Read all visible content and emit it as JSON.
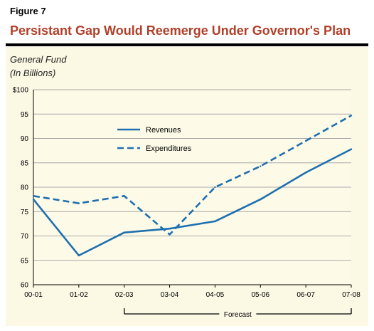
{
  "figure_label": "Figure 7",
  "title": "Persistant Gap Would Reemerge Under Governor's Plan",
  "ylabel_lines": [
    "General Fund",
    "(In Billions)"
  ],
  "colors": {
    "title": "#b0402a",
    "series": "#1f6fb0",
    "plot_bg": "#fdfbe8",
    "panel_bg": "#fbf8e4",
    "grid": "#a8a8a8"
  },
  "chart_data": {
    "type": "line",
    "x": [
      "00-01",
      "01-02",
      "02-03",
      "03-04",
      "04-05",
      "05-06",
      "06-07",
      "07-08"
    ],
    "ylim": [
      60,
      100
    ],
    "y_ticks": [
      "60",
      "65",
      "70",
      "75",
      "80",
      "85",
      "90",
      "95",
      "$100"
    ],
    "grid": true,
    "legend": "upper-middle",
    "series": [
      {
        "name": "Revenues",
        "style": "solid",
        "values": [
          77.5,
          66.0,
          70.7,
          71.5,
          73.0,
          77.5,
          83.0,
          87.8
        ]
      },
      {
        "name": "Expenditures",
        "style": "dashed",
        "values": [
          78.2,
          76.7,
          78.2,
          70.3,
          80.0,
          84.3,
          89.5,
          94.7
        ]
      }
    ],
    "annotation": {
      "text": "Forecast",
      "from": "02-03",
      "to": "07-08"
    }
  }
}
